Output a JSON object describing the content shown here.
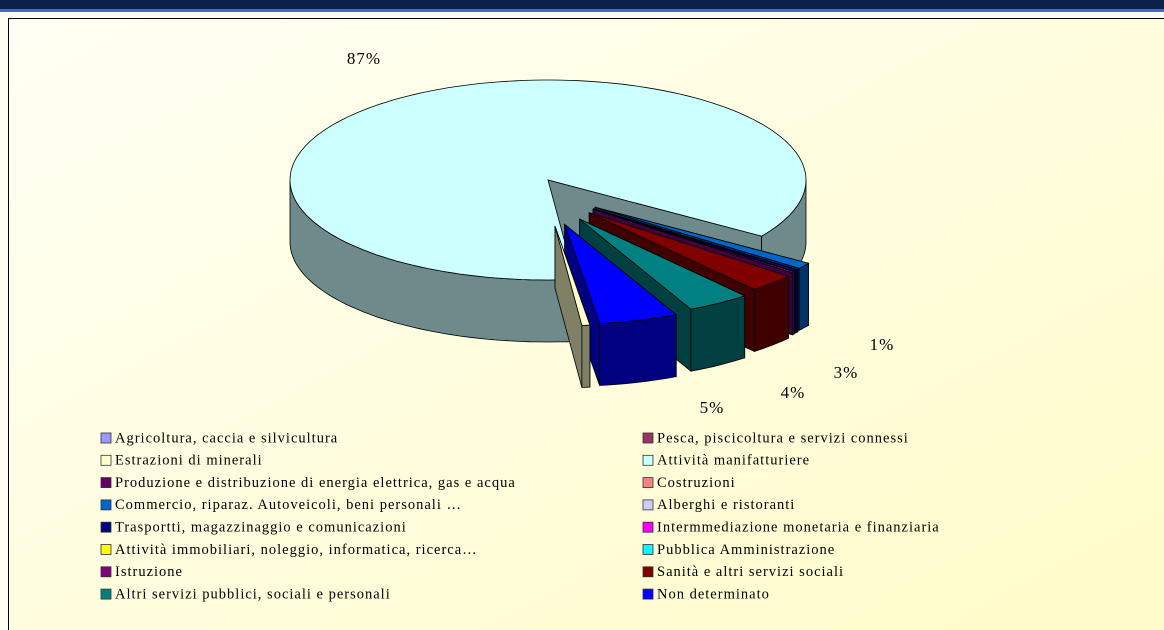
{
  "chart_data": {
    "type": "pie3d",
    "categories": [
      "Agricoltura, caccia e silvicultura",
      "Pesca, piscicoltura e servizi connessi",
      "Estrazioni di minerali",
      "Attività manifatturiere",
      "Produzione e distribuzione di energia elettrica, gas e acqua",
      "Costruzioni",
      "Commercio, riparaz. Autoveicoli, beni personali …",
      "Alberghi e ristoranti",
      "Trasportti, magazzinaggio e comunicazioni",
      "Intermmediazione monetaria e finanziaria",
      "Attività immobiliari, noleggio, informatica, ricerca…",
      "Pubblica Amministrazione",
      "Istruzione",
      "Sanità e altri servizi sociali",
      "Altri servizi pubblici, sociali e personali",
      "Non determinato"
    ],
    "values": [
      0,
      0,
      0.5,
      87,
      0,
      0,
      1,
      0,
      0.3,
      0,
      0,
      0,
      0.2,
      3,
      4,
      5
    ],
    "value_labels": [
      null,
      null,
      null,
      "87%",
      null,
      null,
      "1%",
      null,
      null,
      null,
      null,
      null,
      null,
      "3%",
      "4%",
      "5%"
    ],
    "colors": [
      "#9999ff",
      "#993366",
      "#ffffcc",
      "#ccffff",
      "#660066",
      "#ff8080",
      "#0066cc",
      "#ccccff",
      "#000080",
      "#ff00ff",
      "#ffff00",
      "#00ffff",
      "#800080",
      "#800000",
      "#008080",
      "#0000ff"
    ],
    "legend": "bottom"
  }
}
